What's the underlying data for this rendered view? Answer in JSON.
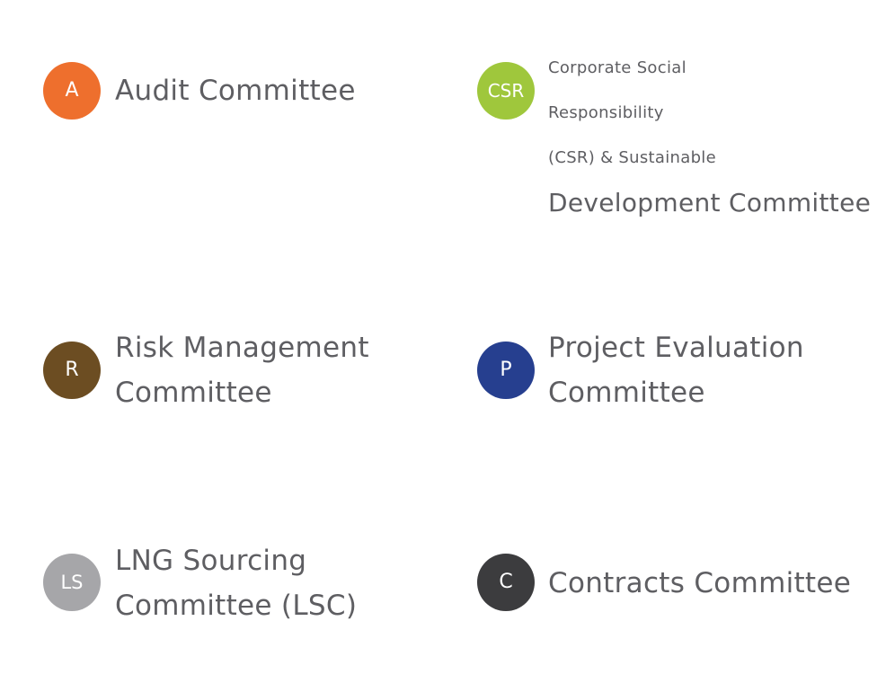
{
  "committees": [
    {
      "badge": "A",
      "color": "#ee6f2d",
      "lines": [
        "Audit Committee"
      ]
    },
    {
      "badge": "CSR",
      "color": "#9fc73c",
      "lines": [
        "Corporate Social",
        "Responsibility",
        "(CSR) & Sustainable",
        "Development Committee"
      ]
    },
    {
      "badge": "R",
      "color": "#6c4d22",
      "lines": [
        "Risk Management",
        "Committee"
      ]
    },
    {
      "badge": "P",
      "color": "#263f8f",
      "lines": [
        "Project Evaluation",
        "Committee"
      ]
    },
    {
      "badge": "LS",
      "color": "#a6a6a9",
      "lines": [
        "LNG Sourcing",
        "Committee (LSC)"
      ]
    },
    {
      "badge": "C",
      "color": "#3c3c3e",
      "lines": [
        "Contracts Committee"
      ]
    }
  ]
}
